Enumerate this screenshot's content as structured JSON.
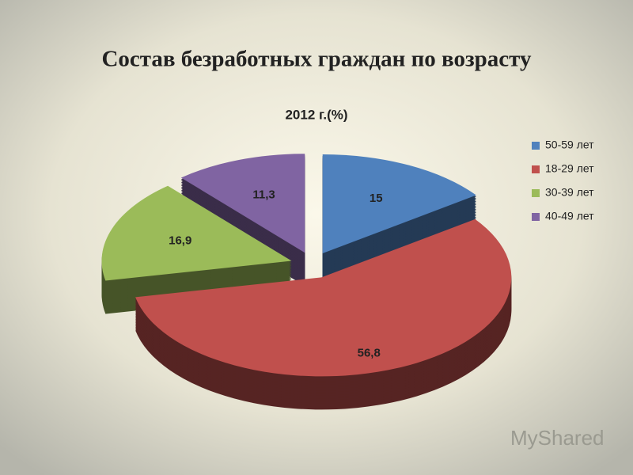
{
  "slide_title": "Состав безработных граждан по возрасту",
  "watermark": "MyShared",
  "chart_data": {
    "type": "pie",
    "title": "2012 г.(%)",
    "categories": [
      "50-59 лет",
      "18-29 лет",
      "30-39 лет",
      "40-49 лет"
    ],
    "values": [
      15,
      56.8,
      16.9,
      11.3
    ],
    "value_labels": [
      "15",
      "56,8",
      "16,9",
      "11,3"
    ],
    "colors": [
      "#4f81bd",
      "#c0504d",
      "#9bbb59",
      "#8064a2"
    ],
    "legend": "right"
  }
}
